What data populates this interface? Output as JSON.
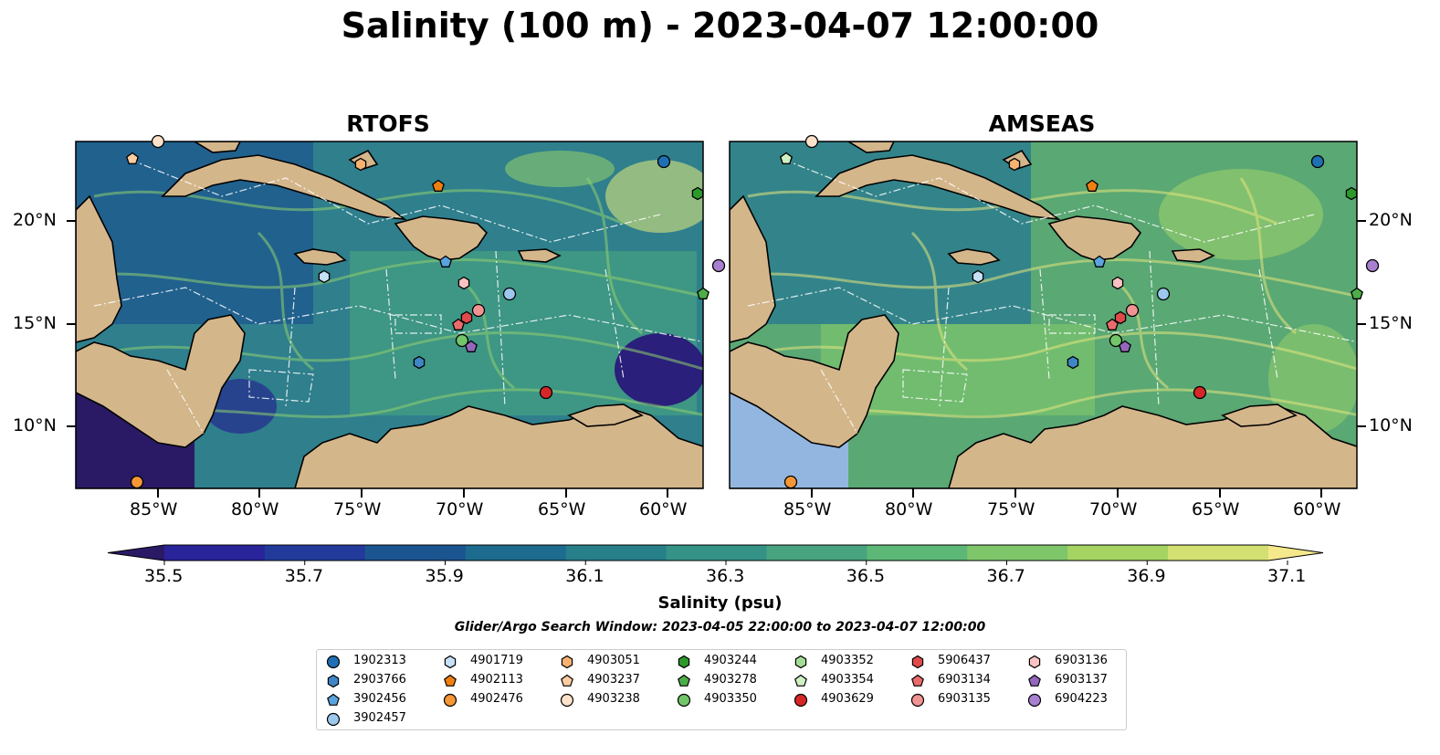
{
  "title": "Salinity (100 m) - 2023-04-07 12:00:00",
  "panels": [
    {
      "id": "rtofs",
      "title": "RTOFS",
      "ocean_color": "#3d8c8a"
    },
    {
      "id": "amseas",
      "title": "AMSEAS",
      "ocean_color": "#5aa874"
    }
  ],
  "axes": {
    "lon_ticks": [
      "85°W",
      "80°W",
      "75°W",
      "70°W",
      "65°W",
      "60°W"
    ],
    "lat_ticks": [
      "20°N",
      "15°N",
      "10°N"
    ]
  },
  "colorbar": {
    "tick_labels": [
      "35.5",
      "35.7",
      "35.9",
      "36.1",
      "36.3",
      "36.5",
      "36.7",
      "36.9",
      "37.1"
    ],
    "colors": [
      "#2a1a66",
      "#29249a",
      "#223b9b",
      "#1b5590",
      "#1d6b8e",
      "#277f8a",
      "#359286",
      "#48a37f",
      "#5db877",
      "#7fc66b",
      "#a5d463",
      "#d2e171",
      "#f5e98c"
    ],
    "label": "Salinity (psu)"
  },
  "search_window": "Glider/Argo Search Window: 2023-04-05 22:00:00 to 2023-04-07 12:00:00",
  "legend": [
    {
      "id": "1902313",
      "color": "#1f6fb4",
      "shape": "circle"
    },
    {
      "id": "2903766",
      "color": "#3e86c6",
      "shape": "hexagon"
    },
    {
      "id": "3902456",
      "color": "#5aa3de",
      "shape": "pentagon"
    },
    {
      "id": "3902457",
      "color": "#9dc8ee",
      "shape": "circle"
    },
    {
      "id": "4901719",
      "color": "#c6e0f8",
      "shape": "hexagon"
    },
    {
      "id": "4902113",
      "color": "#f07f12",
      "shape": "pentagon"
    },
    {
      "id": "4902476",
      "color": "#f59736",
      "shape": "circle"
    },
    {
      "id": "4903051",
      "color": "#f7b171",
      "shape": "hexagon"
    },
    {
      "id": "4903237",
      "color": "#fbcca0",
      "shape": "pentagon"
    },
    {
      "id": "4903238",
      "color": "#fde2cb",
      "shape": "circle"
    },
    {
      "id": "4903244",
      "color": "#2b9a2b",
      "shape": "hexagon"
    },
    {
      "id": "4903278",
      "color": "#4cae47",
      "shape": "pentagon"
    },
    {
      "id": "4903350",
      "color": "#72c569",
      "shape": "circle"
    },
    {
      "id": "4903352",
      "color": "#a4dc97",
      "shape": "hexagon"
    },
    {
      "id": "4903354",
      "color": "#cff0c2",
      "shape": "pentagon"
    },
    {
      "id": "4903629",
      "color": "#d62728",
      "shape": "circle"
    },
    {
      "id": "5906437",
      "color": "#e0494a",
      "shape": "hexagon"
    },
    {
      "id": "6903134",
      "color": "#ea6b6b",
      "shape": "pentagon"
    },
    {
      "id": "6903135",
      "color": "#f29393",
      "shape": "circle"
    },
    {
      "id": "6903136",
      "color": "#fac2c2",
      "shape": "hexagon"
    },
    {
      "id": "6903137",
      "color": "#9467bd",
      "shape": "pentagon"
    },
    {
      "id": "6904223",
      "color": "#a880d0",
      "shape": "circle"
    }
  ]
}
